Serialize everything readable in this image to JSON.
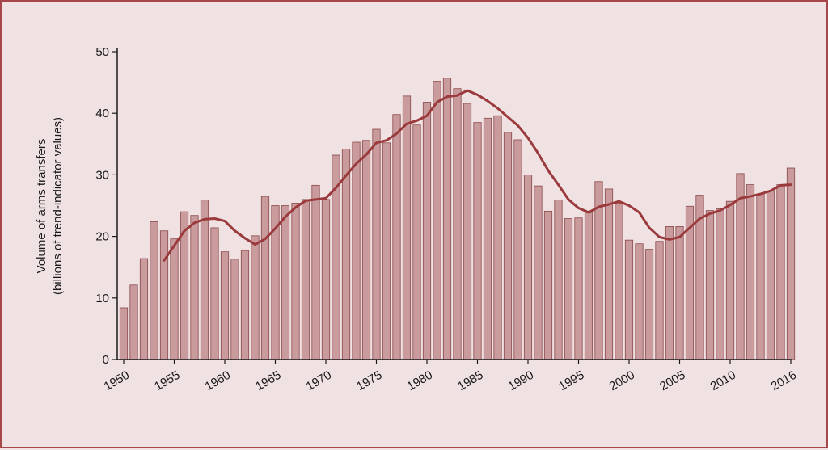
{
  "chart_data": {
    "type": "bar",
    "title": "",
    "ylabel_line1": "Volume of arms transfers",
    "ylabel_line2": "(billions of trend-indicator values)",
    "ylim": [
      0,
      50
    ],
    "yticks": [
      0,
      10,
      20,
      30,
      40,
      50
    ],
    "xtick_labels": [
      "1950",
      "1955",
      "1960",
      "1965",
      "1970",
      "1975",
      "1980",
      "1985",
      "1990",
      "1995",
      "2000",
      "2005",
      "2010",
      "2016"
    ],
    "grid": false,
    "bar_color": "#c99b9c",
    "bar_edge_color": "#8a4a4b",
    "trend_color": "#9b3a3c",
    "years": [
      1950,
      1951,
      1952,
      1953,
      1954,
      1955,
      1956,
      1957,
      1958,
      1959,
      1960,
      1961,
      1962,
      1963,
      1964,
      1965,
      1966,
      1967,
      1968,
      1969,
      1970,
      1971,
      1972,
      1973,
      1974,
      1975,
      1976,
      1977,
      1978,
      1979,
      1980,
      1981,
      1982,
      1983,
      1984,
      1985,
      1986,
      1987,
      1988,
      1989,
      1990,
      1991,
      1992,
      1993,
      1994,
      1995,
      1996,
      1997,
      1998,
      1999,
      2000,
      2001,
      2002,
      2003,
      2004,
      2005,
      2006,
      2007,
      2008,
      2009,
      2010,
      2011,
      2012,
      2013,
      2014,
      2015,
      2016
    ],
    "values": [
      8.4,
      12.1,
      16.4,
      22.4,
      20.9,
      19.6,
      24.0,
      23.4,
      25.9,
      21.4,
      17.5,
      16.3,
      17.7,
      20.1,
      26.5,
      25.0,
      25.0,
      25.4,
      26.0,
      28.3,
      26.0,
      33.2,
      34.2,
      35.3,
      35.6,
      37.4,
      35.2,
      39.8,
      42.8,
      38.1,
      41.8,
      45.2,
      45.7,
      44.0,
      41.6,
      38.5,
      39.2,
      39.6,
      36.9,
      35.7,
      30.0,
      28.2,
      24.1,
      25.9,
      22.9,
      23.0,
      23.8,
      28.9,
      27.7,
      25.4,
      19.4,
      18.8,
      17.9,
      19.2,
      21.6,
      21.6,
      24.9,
      26.7,
      24.2,
      24.5,
      25.7,
      30.2,
      28.4,
      26.9,
      27.4,
      28.4,
      31.1
    ],
    "trend": {
      "years": [
        1954,
        1955,
        1956,
        1957,
        1958,
        1959,
        1960,
        1961,
        1962,
        1963,
        1964,
        1965,
        1966,
        1967,
        1968,
        1969,
        1970,
        1971,
        1972,
        1973,
        1974,
        1975,
        1976,
        1977,
        1978,
        1979,
        1980,
        1981,
        1982,
        1983,
        1984,
        1985,
        1986,
        1987,
        1988,
        1989,
        1990,
        1991,
        1992,
        1993,
        1994,
        1995,
        1996,
        1997,
        1998,
        1999,
        2000,
        2001,
        2002,
        2003,
        2004,
        2005,
        2006,
        2007,
        2008,
        2009,
        2010,
        2011,
        2012,
        2013,
        2014,
        2015,
        2016
      ],
      "values": [
        16.1,
        18.5,
        20.9,
        22.2,
        22.8,
        22.9,
        22.5,
        20.9,
        19.7,
        18.7,
        19.6,
        21.3,
        23.2,
        24.7,
        25.8,
        26.0,
        26.2,
        27.9,
        29.9,
        31.8,
        33.3,
        35.2,
        35.6,
        36.7,
        38.3,
        38.8,
        39.6,
        41.8,
        42.7,
        42.9,
        43.7,
        43.0,
        42.0,
        40.8,
        39.4,
        38.0,
        36.0,
        33.5,
        30.7,
        28.4,
        26.0,
        24.6,
        23.9,
        24.8,
        25.2,
        25.7,
        25.0,
        23.9,
        21.4,
        19.9,
        19.5,
        19.9,
        21.4,
        22.9,
        23.7,
        24.2,
        25.1,
        26.2,
        26.5,
        26.9,
        27.4,
        28.3,
        28.4
      ]
    }
  }
}
